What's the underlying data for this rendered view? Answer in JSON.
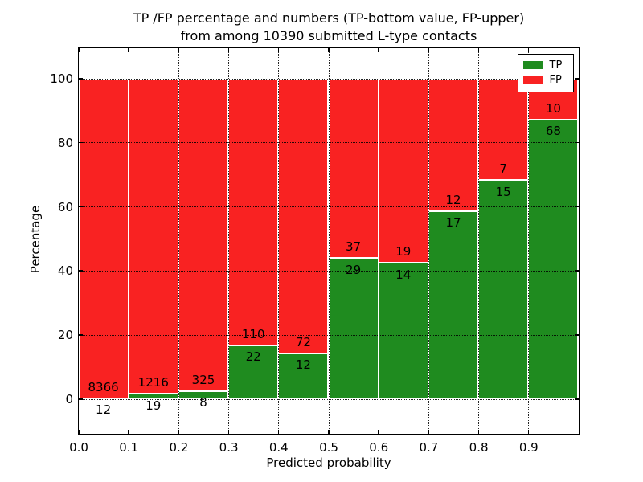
{
  "figure": {
    "title_line1": "TP /FP percentage and numbers (TP-bottom value, FP-upper)",
    "title_line2": "from among 10390 submitted L-type contacts"
  },
  "axes": {
    "xlabel": "Predicted probability",
    "ylabel": "Percentage",
    "xtick_labels": [
      "0.0",
      "0.1",
      "0.2",
      "0.3",
      "0.4",
      "0.5",
      "0.6",
      "0.7",
      "0.8",
      "0.9"
    ],
    "xtick_positions": [
      0.0,
      0.1,
      0.2,
      0.3,
      0.4,
      0.5,
      0.6,
      0.7,
      0.8,
      0.9
    ],
    "ytick_labels": [
      "0",
      "20",
      "40",
      "60",
      "80",
      "100"
    ],
    "ytick_values": [
      0,
      20,
      40,
      60,
      80,
      100
    ],
    "xlim": [
      0.0,
      1.0
    ],
    "ylim": [
      -11,
      110
    ],
    "grid_style": "dotted"
  },
  "legend": {
    "position": "upper right",
    "items": [
      {
        "label": "TP",
        "color": "#1f8b1f"
      },
      {
        "label": "FP",
        "color": "#f92222"
      }
    ]
  },
  "colors": {
    "tp": "#1f8b1f",
    "fp": "#f92222",
    "bar_edge": "#ffffff",
    "axis": "#000000",
    "background": "#ffffff"
  },
  "chart_data": {
    "type": "bar",
    "stacked": true,
    "normalized_to_percent": true,
    "title": "TP /FP percentage and numbers (TP-bottom value, FP-upper) from among 10390 submitted L-type contacts",
    "xlabel": "Predicted probability",
    "ylabel": "Percentage",
    "total_contacts": 10390,
    "bin_width": 0.1,
    "bin_starts": [
      0.0,
      0.1,
      0.2,
      0.3,
      0.4,
      0.5,
      0.6,
      0.7,
      0.8,
      0.9
    ],
    "categories": [
      "0.0-0.1",
      "0.1-0.2",
      "0.2-0.3",
      "0.3-0.4",
      "0.4-0.5",
      "0.5-0.6",
      "0.6-0.7",
      "0.7-0.8",
      "0.8-0.9",
      "0.9-1.0"
    ],
    "series": [
      {
        "name": "TP",
        "color": "#1f8b1f",
        "counts": [
          12,
          19,
          8,
          22,
          12,
          29,
          14,
          17,
          15,
          68
        ]
      },
      {
        "name": "FP",
        "color": "#f92222",
        "counts": [
          8366,
          1216,
          325,
          110,
          72,
          37,
          19,
          12,
          7,
          10
        ]
      }
    ],
    "tp_percent": [
      0.1,
      1.5,
      2.4,
      16.7,
      14.3,
      43.9,
      42.4,
      58.6,
      68.2,
      87.2
    ],
    "fp_percent": [
      99.9,
      98.5,
      97.6,
      83.3,
      85.7,
      56.1,
      57.6,
      41.4,
      31.8,
      12.8
    ],
    "ylim": [
      -11,
      110
    ],
    "xlim": [
      0.0,
      1.0
    ],
    "legend_position": "upper right",
    "grid": true
  }
}
